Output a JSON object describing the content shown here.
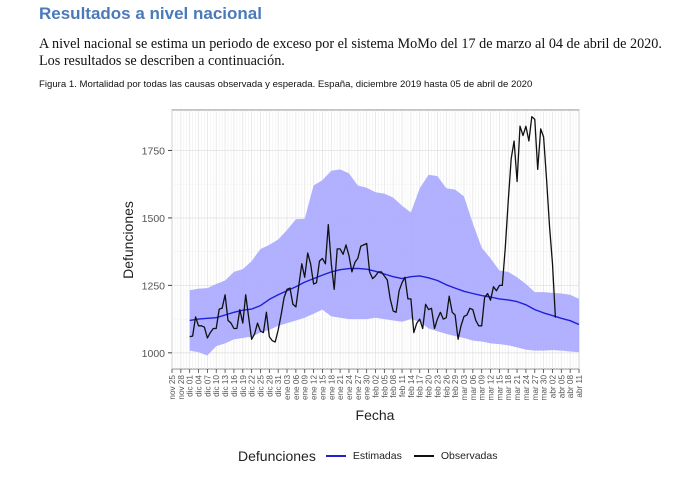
{
  "document": {
    "heading": "Resultados a nivel nacional",
    "paragraph": "A nivel nacional se estima un periodo de exceso por el sistema MoMo del 17 de marzo al 04 de abril de 2020. Los resultados se describen a continuación.",
    "caption": "Figura 1. Mortalidad por todas las causas observada y esperada. España, diciembre 2019 hasta 05 de abril de 2020"
  },
  "chart_data": {
    "type": "line",
    "title": "",
    "xlabel": "Fecha",
    "ylabel": "Defunciones",
    "ylim": [
      940,
      1900
    ],
    "yticks": [
      1000,
      1250,
      1500,
      1750
    ],
    "x_range_days": [
      0,
      138
    ],
    "x_start_label": "nov 25",
    "x_tick_step_days": 3,
    "xtick_labels": [
      "nov 25",
      "nov 28",
      "dic 01",
      "dic 04",
      "dic 07",
      "dic 10",
      "dic 13",
      "dic 16",
      "dic 19",
      "dic 22",
      "dic 25",
      "dic 28",
      "dic 31",
      "ene 03",
      "ene 06",
      "ene 09",
      "ene 12",
      "ene 15",
      "ene 18",
      "ene 21",
      "ene 24",
      "ene 27",
      "ene 30",
      "feb 02",
      "feb 05",
      "feb 08",
      "feb 11",
      "feb 14",
      "feb 17",
      "feb 20",
      "feb 23",
      "feb 26",
      "feb 29",
      "mar 03",
      "mar 06",
      "mar 09",
      "mar 12",
      "mar 15",
      "mar 18",
      "mar 21",
      "mar 24",
      "mar 27",
      "mar 30",
      "abr 02",
      "abr 05",
      "abr 08",
      "abr 11"
    ],
    "grid": true,
    "legend": {
      "title": "Defunciones",
      "position": "bottom",
      "entries": [
        {
          "name": "Estimadas",
          "color": "#1f1fd6"
        },
        {
          "name": "Observadas",
          "color": "#111111"
        }
      ]
    },
    "band_color": "#a9a9ff",
    "series": [
      {
        "name": "Estimadas",
        "x_start_day": 6,
        "step_days": 3,
        "values": [
          1120,
          1125,
          1128,
          1130,
          1140,
          1150,
          1158,
          1162,
          1175,
          1198,
          1215,
          1230,
          1245,
          1262,
          1275,
          1288,
          1300,
          1308,
          1312,
          1313,
          1310,
          1302,
          1292,
          1282,
          1275,
          1282,
          1285,
          1278,
          1268,
          1252,
          1240,
          1228,
          1220,
          1212,
          1207,
          1200,
          1196,
          1190,
          1178,
          1160,
          1148,
          1138,
          1128,
          1119,
          1105
        ]
      },
      {
        "name": "Observadas",
        "x_start_day": 6,
        "step_days": 1,
        "values": [
          1060,
          1062,
          1133,
          1100,
          1100,
          1095,
          1055,
          1075,
          1090,
          1090,
          1162,
          1165,
          1215,
          1120,
          1110,
          1090,
          1090,
          1160,
          1110,
          1215,
          1130,
          1050,
          1070,
          1110,
          1080,
          1075,
          1150,
          1060,
          1045,
          1040,
          1085,
          1140,
          1205,
          1235,
          1240,
          1180,
          1170,
          1250,
          1330,
          1280,
          1370,
          1330,
          1255,
          1260,
          1340,
          1350,
          1330,
          1475,
          1330,
          1235,
          1385,
          1385,
          1365,
          1400,
          1360,
          1300,
          1335,
          1350,
          1395,
          1400,
          1405,
          1300,
          1275,
          1285,
          1300,
          1300,
          1285,
          1270,
          1200,
          1155,
          1150,
          1230,
          1260,
          1280,
          1200,
          1200,
          1075,
          1110,
          1125,
          1090,
          1180,
          1160,
          1165,
          1090,
          1125,
          1150,
          1125,
          1130,
          1210,
          1150,
          1140,
          1050,
          1100,
          1135,
          1140,
          1165,
          1160,
          1120,
          1100,
          1100,
          1205,
          1220,
          1195,
          1245,
          1230,
          1250,
          1250,
          1390,
          1560,
          1720,
          1785,
          1635,
          1840,
          1805,
          1840,
          1785,
          1875,
          1865,
          1680,
          1830,
          1800,
          1640,
          1470,
          1330,
          1130
        ]
      }
    ],
    "band": {
      "x_start_day": 6,
      "step_days": 3,
      "upper": [
        1232,
        1238,
        1240,
        1255,
        1268,
        1300,
        1310,
        1340,
        1385,
        1400,
        1420,
        1455,
        1495,
        1497,
        1620,
        1640,
        1675,
        1680,
        1665,
        1620,
        1612,
        1595,
        1590,
        1575,
        1545,
        1520,
        1610,
        1660,
        1655,
        1610,
        1605,
        1580,
        1480,
        1390,
        1350,
        1305,
        1300,
        1280,
        1255,
        1225,
        1225,
        1222,
        1220,
        1215,
        1200
      ],
      "lower": [
        1008,
        1002,
        990,
        1025,
        1035,
        1050,
        1055,
        1060,
        1075,
        1085,
        1100,
        1110,
        1120,
        1130,
        1145,
        1160,
        1135,
        1130,
        1125,
        1125,
        1125,
        1130,
        1125,
        1120,
        1115,
        1125,
        1115,
        1090,
        1080,
        1070,
        1062,
        1055,
        1045,
        1042,
        1035,
        1032,
        1028,
        1020,
        1012,
        1008,
        1008,
        1010,
        1008,
        1005,
        1002
      ]
    }
  }
}
